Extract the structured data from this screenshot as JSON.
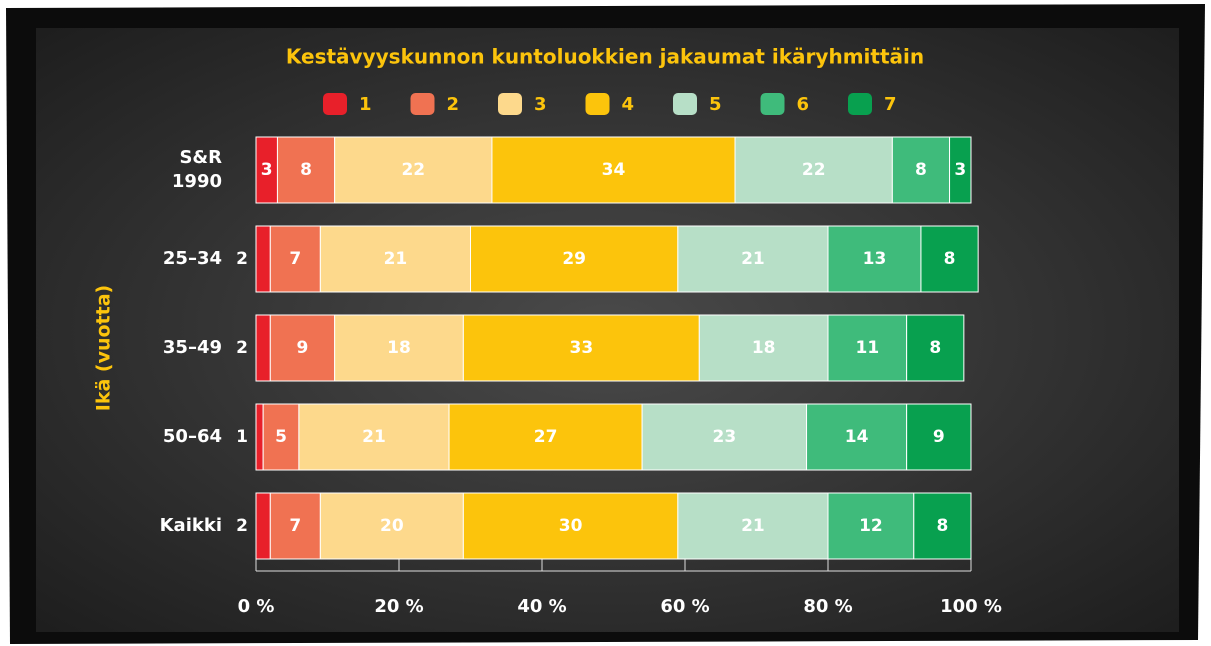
{
  "chart_data": {
    "type": "bar",
    "orientation": "horizontal",
    "stacked": true,
    "title": "Kestävyyskunnon kuntoluokkien jakaumat ikäryhmittäin",
    "y_axis_label": "Ikä (vuotta)",
    "categories": [
      "S&R 1990",
      "25–34",
      "35–49",
      "50–64",
      "Kaikki"
    ],
    "series": [
      {
        "name": "1",
        "color": "#e8202a",
        "values": [
          3,
          2,
          2,
          1,
          2
        ]
      },
      {
        "name": "2",
        "color": "#f07252",
        "values": [
          8,
          7,
          9,
          5,
          7
        ]
      },
      {
        "name": "3",
        "color": "#fdd98c",
        "values": [
          22,
          21,
          18,
          21,
          20
        ]
      },
      {
        "name": "4",
        "color": "#fcc40c",
        "values": [
          34,
          29,
          33,
          27,
          30
        ]
      },
      {
        "name": "5",
        "color": "#b7dfc7",
        "values": [
          22,
          21,
          18,
          23,
          21
        ]
      },
      {
        "name": "6",
        "color": "#3fbb7b",
        "values": [
          8,
          13,
          11,
          14,
          12
        ]
      },
      {
        "name": "7",
        "color": "#08a04f",
        "values": [
          3,
          8,
          8,
          9,
          8
        ]
      }
    ],
    "xlim": [
      0,
      100
    ],
    "xticks": [
      {
        "value": 0,
        "label": "0 %"
      },
      {
        "value": 20,
        "label": "20 %"
      },
      {
        "value": 40,
        "label": "40 %"
      },
      {
        "value": 60,
        "label": "60 %"
      },
      {
        "value": 80,
        "label": "80 %"
      },
      {
        "value": 100,
        "label": "100 %"
      }
    ]
  }
}
